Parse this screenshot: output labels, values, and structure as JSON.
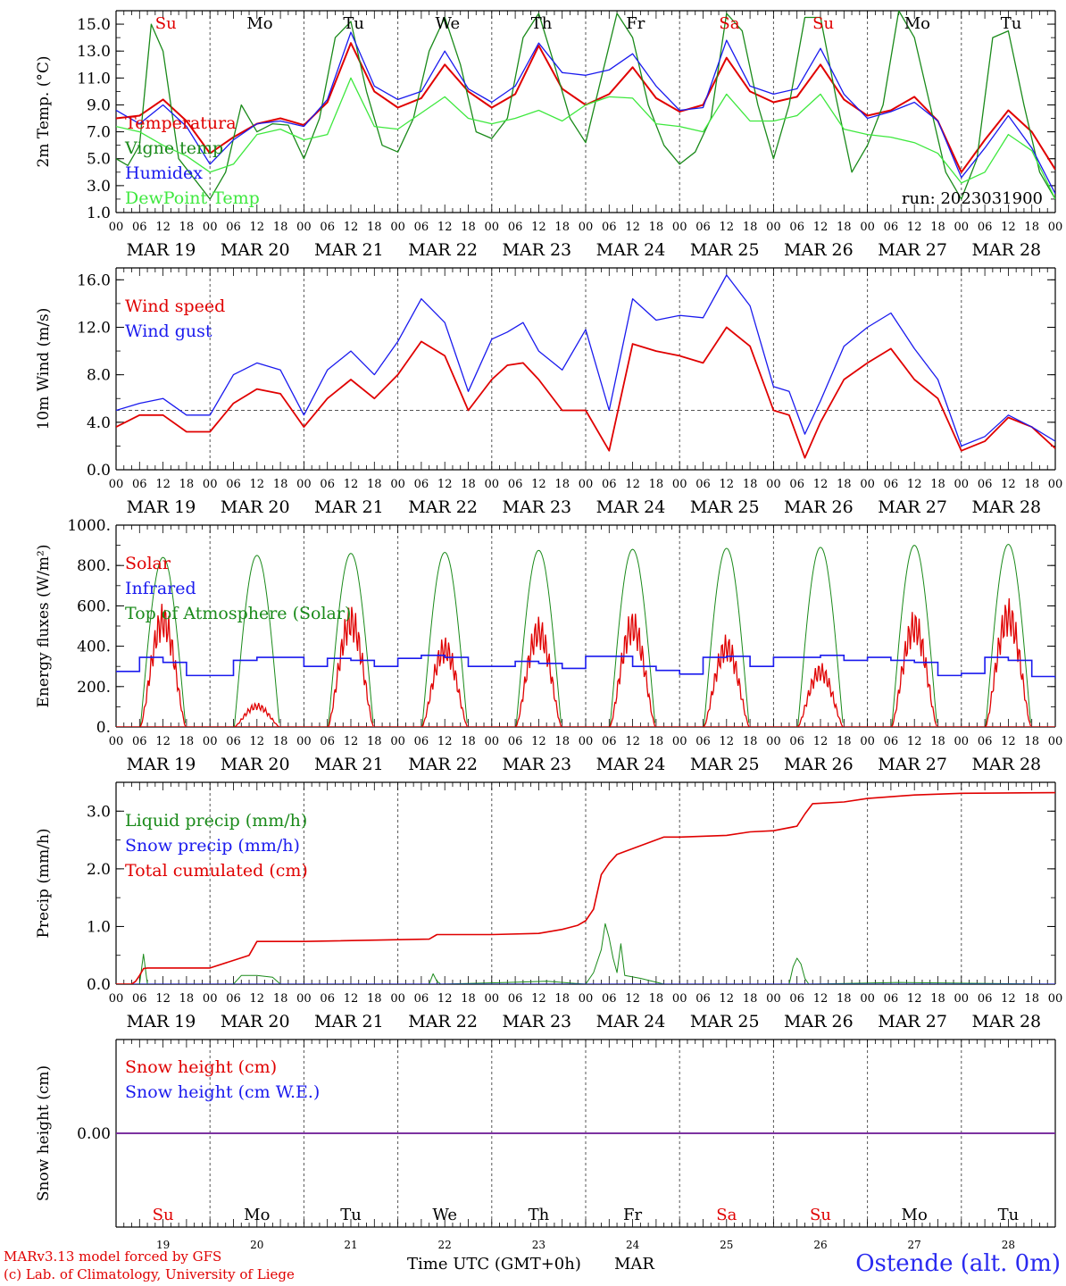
{
  "days": {
    "weekday_labels": [
      "Su",
      "Mo",
      "Tu",
      "We",
      "Th",
      "Fr",
      "Sa",
      "Su",
      "Mo",
      "Tu"
    ],
    "weekend_flags": [
      true,
      false,
      false,
      false,
      false,
      false,
      true,
      true,
      false,
      false
    ],
    "date_labels": [
      "MAR 19",
      "MAR 20",
      "MAR 21",
      "MAR 22",
      "MAR 23",
      "MAR 24",
      "MAR 25",
      "MAR 26",
      "MAR 27",
      "MAR 28"
    ],
    "day_numbers": [
      "19",
      "20",
      "21",
      "22",
      "23",
      "24",
      "25",
      "26",
      "27",
      "28"
    ],
    "hour_labels": [
      "00",
      "06",
      "12",
      "18"
    ],
    "end_hour_label": "00"
  },
  "colors": {
    "red": "#e00000",
    "blue": "#1a1aee",
    "dark_green": "#1a8a1a",
    "light_green": "#3ee83e",
    "purple": "#7a2a9a",
    "axis": "#000000"
  },
  "footer": {
    "credit_line1": "MARv3.13 model forced by GFS",
    "credit_line2": "(c) Lab. of Climatology, University of Liege",
    "xlabel": "Time UTC (GMT+0h)",
    "month": "MAR",
    "station": "Ostende (alt. 0m)"
  },
  "chart_data": [
    {
      "id": "temperature",
      "type": "line",
      "ylabel": "2m Temp. (°C)",
      "ylim": [
        1.0,
        16.0
      ],
      "yticks": [
        1.0,
        3.0,
        5.0,
        7.0,
        9.0,
        11.0,
        13.0,
        15.0
      ],
      "ytick_labels": [
        "1.0",
        "3.0",
        "5.0",
        "7.0",
        "9.0",
        "11.0",
        "13.0",
        "15.0"
      ],
      "xlim_hours": [
        0,
        240
      ],
      "annotation": "run: 2023031900",
      "legend_placement": "top-left",
      "series": [
        {
          "name": "Temperatura",
          "color": "red",
          "width": 2.0,
          "x": [
            0,
            6,
            12,
            18,
            24,
            30,
            36,
            42,
            48,
            54,
            60,
            66,
            72,
            78,
            84,
            90,
            96,
            102,
            108,
            114,
            120,
            126,
            132,
            138,
            144,
            150,
            156,
            162,
            168,
            174,
            180,
            186,
            192,
            198,
            204,
            210,
            216,
            222,
            228,
            234,
            240
          ],
          "y": [
            8.0,
            8.2,
            9.4,
            7.8,
            5.4,
            6.6,
            7.6,
            8.0,
            7.5,
            9.2,
            13.6,
            10.0,
            8.8,
            9.5,
            12.0,
            10.0,
            8.8,
            9.8,
            13.4,
            10.2,
            9.0,
            9.8,
            11.8,
            9.5,
            8.5,
            9.0,
            12.5,
            10.0,
            9.2,
            9.6,
            12.0,
            9.4,
            8.2,
            8.6,
            9.6,
            7.8,
            4.0,
            6.4,
            8.6,
            7.0,
            4.2
          ]
        },
        {
          "name": "Vigne temp",
          "color": "dark_green",
          "width": 1.3,
          "x": [
            0,
            3,
            6,
            9,
            12,
            16,
            20,
            24,
            28,
            32,
            36,
            40,
            44,
            48,
            52,
            56,
            60,
            64,
            68,
            72,
            76,
            80,
            84,
            88,
            92,
            96,
            100,
            104,
            108,
            112,
            116,
            120,
            124,
            128,
            132,
            136,
            140,
            144,
            148,
            152,
            156,
            160,
            164,
            168,
            172,
            176,
            180,
            184,
            188,
            192,
            196,
            200,
            204,
            208,
            212,
            216,
            220,
            224,
            228,
            232,
            236,
            240
          ],
          "y": [
            5.0,
            4.5,
            6.0,
            15.0,
            13.0,
            5.0,
            3.5,
            2.0,
            4.0,
            9.0,
            7.0,
            7.6,
            7.5,
            5.0,
            8.0,
            14.0,
            15.2,
            10.0,
            6.0,
            5.5,
            8.0,
            13.0,
            15.5,
            12.0,
            7.0,
            6.5,
            8.0,
            14.0,
            15.8,
            12.0,
            8.0,
            6.2,
            11.0,
            15.8,
            14.0,
            9.0,
            6.0,
            4.6,
            5.5,
            8.0,
            15.8,
            14.5,
            9.0,
            5.0,
            9.0,
            15.5,
            15.5,
            9.5,
            4.0,
            6.0,
            9.0,
            16.0,
            14.0,
            9.0,
            4.0,
            2.0,
            5.0,
            14.0,
            14.5,
            9.0,
            4.0,
            2.0
          ]
        },
        {
          "name": "Humidex",
          "color": "blue",
          "width": 1.3,
          "x": [
            0,
            6,
            12,
            18,
            24,
            30,
            36,
            42,
            48,
            54,
            60,
            66,
            72,
            78,
            84,
            90,
            96,
            102,
            108,
            114,
            120,
            126,
            132,
            138,
            144,
            150,
            156,
            162,
            168,
            174,
            180,
            186,
            192,
            198,
            204,
            210,
            216,
            222,
            228,
            234,
            240
          ],
          "y": [
            8.6,
            7.6,
            9.0,
            7.4,
            4.6,
            6.4,
            7.6,
            7.8,
            7.4,
            9.4,
            14.4,
            10.4,
            9.4,
            10.0,
            13.0,
            10.2,
            9.2,
            10.4,
            13.6,
            11.4,
            11.2,
            11.6,
            12.8,
            10.4,
            8.6,
            8.8,
            13.8,
            10.4,
            9.8,
            10.2,
            13.2,
            9.8,
            8.0,
            8.5,
            9.2,
            7.8,
            3.6,
            5.8,
            8.2,
            5.8,
            2.4
          ]
        },
        {
          "name": "DewPoint Temp",
          "color": "light_green",
          "width": 1.3,
          "x": [
            0,
            6,
            12,
            18,
            24,
            30,
            36,
            42,
            48,
            54,
            60,
            66,
            72,
            78,
            84,
            90,
            96,
            102,
            108,
            114,
            120,
            126,
            132,
            138,
            144,
            150,
            156,
            162,
            168,
            174,
            180,
            186,
            192,
            198,
            204,
            210,
            216,
            222,
            228,
            234,
            240
          ],
          "y": [
            7.4,
            7.0,
            6.0,
            5.2,
            4.0,
            4.6,
            6.8,
            7.2,
            6.4,
            6.8,
            11.0,
            7.4,
            7.2,
            8.4,
            9.6,
            8.0,
            7.6,
            8.0,
            8.6,
            7.8,
            9.0,
            9.6,
            9.5,
            7.6,
            7.4,
            7.0,
            9.8,
            7.8,
            7.8,
            8.2,
            9.8,
            7.2,
            6.8,
            6.6,
            6.2,
            5.4,
            3.2,
            4.0,
            6.8,
            5.6,
            2.0
          ]
        }
      ]
    },
    {
      "id": "wind",
      "type": "line",
      "ylabel": "10m Wind (m/s)",
      "ylim": [
        0.0,
        17.0
      ],
      "yticks": [
        0.0,
        4.0,
        8.0,
        12.0,
        16.0
      ],
      "ytick_labels": [
        "0.0",
        "4.0",
        "8.0",
        "12.0",
        "16.0"
      ],
      "xlim_hours": [
        0,
        240
      ],
      "reference_line_value": 5.0,
      "legend_placement": "top-left",
      "series": [
        {
          "name": "Wind speed",
          "color": "red",
          "width": 1.8,
          "x": [
            0,
            6,
            12,
            18,
            24,
            30,
            36,
            42,
            48,
            54,
            60,
            66,
            72,
            78,
            84,
            90,
            96,
            100,
            104,
            108,
            114,
            120,
            126,
            132,
            138,
            144,
            150,
            156,
            162,
            168,
            172,
            176,
            180,
            186,
            192,
            198,
            204,
            210,
            216,
            222,
            228,
            234,
            240
          ],
          "y": [
            3.6,
            4.6,
            4.6,
            3.2,
            3.2,
            5.6,
            6.8,
            6.4,
            3.6,
            6.0,
            7.6,
            6.0,
            8.0,
            10.8,
            9.6,
            5.0,
            7.6,
            8.8,
            9.0,
            7.6,
            5.0,
            5.0,
            1.6,
            10.6,
            10.0,
            9.6,
            9.0,
            12.0,
            10.4,
            5.0,
            4.6,
            1.0,
            4.0,
            7.6,
            9.0,
            10.2,
            7.6,
            6.0,
            1.6,
            2.4,
            4.4,
            3.6,
            1.8
          ]
        },
        {
          "name": "Wind gust",
          "color": "blue",
          "width": 1.3,
          "x": [
            0,
            6,
            12,
            18,
            24,
            30,
            36,
            42,
            48,
            54,
            60,
            66,
            72,
            78,
            84,
            90,
            96,
            100,
            104,
            108,
            114,
            120,
            126,
            132,
            138,
            144,
            150,
            156,
            162,
            168,
            172,
            176,
            180,
            186,
            192,
            198,
            204,
            210,
            216,
            222,
            228,
            234,
            240
          ],
          "y": [
            5.0,
            5.6,
            6.0,
            4.6,
            4.6,
            8.0,
            9.0,
            8.4,
            4.6,
            8.4,
            10.0,
            8.0,
            10.8,
            14.4,
            12.4,
            6.6,
            11.0,
            11.6,
            12.4,
            10.0,
            8.4,
            11.8,
            5.0,
            14.4,
            12.6,
            13.0,
            12.8,
            16.4,
            13.8,
            7.0,
            6.6,
            3.0,
            5.8,
            10.4,
            12.0,
            13.2,
            10.2,
            7.6,
            2.0,
            2.8,
            4.6,
            3.6,
            2.4
          ]
        }
      ]
    },
    {
      "id": "energy",
      "type": "line",
      "ylabel": "Energy fluxes (W/m²)",
      "ylim": [
        0,
        1000
      ],
      "yticks": [
        0,
        200,
        400,
        600,
        800,
        1000
      ],
      "ytick_labels": [
        "0.",
        "200.",
        "400.",
        "600.",
        "800.",
        "1000."
      ],
      "xlim_hours": [
        0,
        240
      ],
      "legend_placement": "top-left",
      "solar_peaks": [
        615,
        120,
        610,
        450,
        550,
        580,
        460,
        320,
        580,
        640
      ],
      "toa_peaks": [
        840,
        850,
        860,
        865,
        875,
        880,
        885,
        890,
        900,
        905
      ],
      "series": [
        {
          "name": "Solar",
          "color": "red",
          "width": 1.3
        },
        {
          "name": "Infrared",
          "color": "blue",
          "width": 1.6,
          "x": [
            0,
            6,
            12,
            18,
            24,
            30,
            36,
            42,
            48,
            54,
            60,
            66,
            72,
            78,
            84,
            90,
            96,
            102,
            108,
            114,
            120,
            126,
            132,
            138,
            144,
            150,
            156,
            162,
            168,
            174,
            180,
            186,
            192,
            198,
            204,
            210,
            216,
            222,
            228,
            234,
            240
          ],
          "y": [
            275,
            345,
            320,
            255,
            255,
            330,
            345,
            345,
            300,
            340,
            330,
            300,
            340,
            355,
            345,
            300,
            300,
            325,
            315,
            290,
            350,
            350,
            300,
            280,
            262,
            345,
            350,
            300,
            345,
            345,
            355,
            330,
            345,
            330,
            320,
            255,
            265,
            345,
            330,
            250,
            240
          ]
        },
        {
          "name": "Top of Atmosphere (Solar)",
          "color": "dark_green",
          "width": 1.0
        }
      ]
    },
    {
      "id": "precip",
      "type": "line",
      "ylabel": "Precip (mm/h)",
      "ylim": [
        0.0,
        3.5
      ],
      "yticks": [
        0.0,
        1.0,
        2.0,
        3.0
      ],
      "ytick_labels": [
        "0.0",
        "1.0",
        "2.0",
        "3.0"
      ],
      "xlim_hours": [
        0,
        240
      ],
      "legend_placement": "top-left",
      "series": [
        {
          "name": "Liquid precip (mm/h)",
          "color": "dark_green",
          "width": 1.0,
          "x": [
            0,
            4,
            6,
            7,
            8,
            30,
            32,
            36,
            40,
            42,
            80,
            81,
            82,
            83,
            100,
            110,
            120,
            122,
            124,
            125,
            126,
            127,
            128,
            129,
            130,
            134,
            140,
            172,
            173,
            174,
            175,
            176,
            177,
            200,
            240
          ],
          "y": [
            0,
            0,
            0.0,
            0.52,
            0.0,
            0.0,
            0.15,
            0.15,
            0.12,
            0.0,
            0.0,
            0.18,
            0.05,
            0.0,
            0.03,
            0.05,
            0.0,
            0.2,
            0.6,
            1.05,
            0.8,
            0.45,
            0.2,
            0.7,
            0.15,
            0.1,
            0.0,
            0.0,
            0.3,
            0.45,
            0.35,
            0.1,
            0.0,
            0.03,
            0.0
          ]
        },
        {
          "name": "Snow precip (mm/h)",
          "color": "blue",
          "width": 1.0,
          "x": [
            0,
            240
          ],
          "y": [
            0,
            0
          ]
        },
        {
          "name": "Total cumulated (cm)",
          "color": "red",
          "width": 1.6,
          "x": [
            0,
            4,
            5,
            6,
            7,
            8,
            24,
            34,
            36,
            44,
            48,
            80,
            82,
            96,
            108,
            114,
            118,
            120,
            122,
            124,
            126,
            128,
            130,
            136,
            140,
            144,
            156,
            162,
            168,
            174,
            176,
            178,
            186,
            192,
            204,
            216,
            240
          ],
          "y": [
            0,
            0,
            0.05,
            0.15,
            0.27,
            0.28,
            0.28,
            0.5,
            0.74,
            0.74,
            0.74,
            0.78,
            0.86,
            0.86,
            0.88,
            0.95,
            1.02,
            1.1,
            1.3,
            1.9,
            2.1,
            2.25,
            2.3,
            2.45,
            2.55,
            2.55,
            2.58,
            2.64,
            2.66,
            2.74,
            2.95,
            3.13,
            3.16,
            3.22,
            3.28,
            3.31,
            3.32
          ]
        }
      ]
    },
    {
      "id": "snow",
      "type": "line",
      "ylabel": "Snow height (cm)",
      "ylim": [
        -1.0,
        1.0
      ],
      "yticks": [
        0.0
      ],
      "ytick_labels": [
        "0.00"
      ],
      "xlim_hours": [
        0,
        240
      ],
      "legend_placement": "top-left",
      "series": [
        {
          "name": "Snow height (cm)",
          "color": "red",
          "width": 1.4,
          "x": [
            0,
            240
          ],
          "y": [
            0,
            0
          ]
        },
        {
          "name": "Snow height (cm W.E.)",
          "color": "blue",
          "width": 1.4,
          "x": [
            0,
            240
          ],
          "y": [
            0,
            0
          ]
        }
      ]
    }
  ]
}
